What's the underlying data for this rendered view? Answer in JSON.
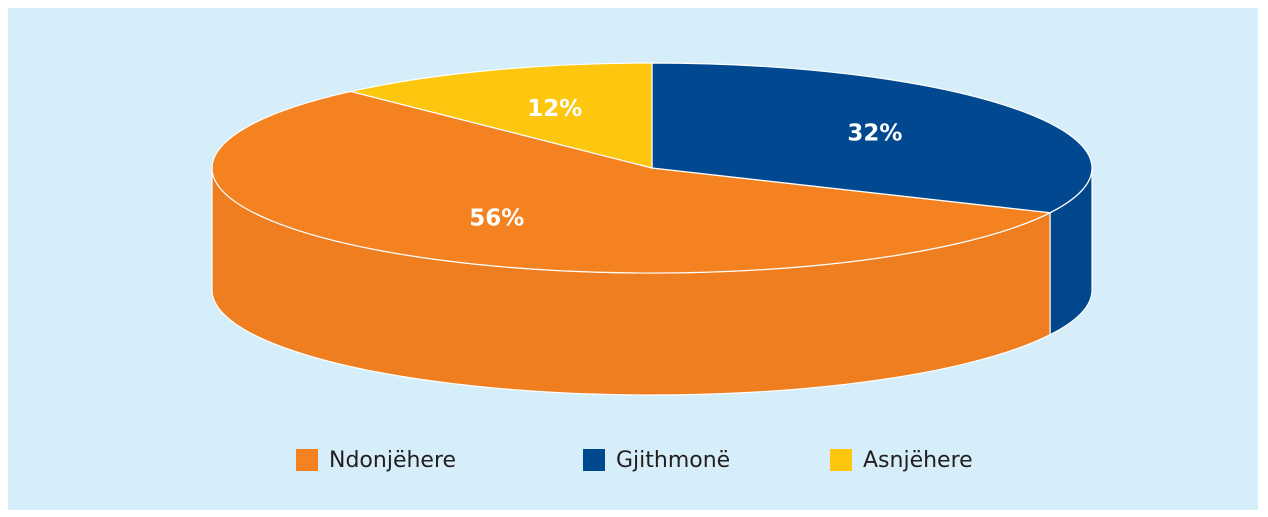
{
  "chart_data": {
    "type": "pie",
    "categories": [
      "Ndonjëhere",
      "Gjithmonë",
      "Asnjëhere"
    ],
    "values": [
      56,
      32,
      12
    ],
    "value_labels": [
      "56%",
      "32%",
      "12%"
    ],
    "colors": [
      "#f58220",
      "#004990",
      "#fdc70f"
    ],
    "legend": "bottom"
  }
}
